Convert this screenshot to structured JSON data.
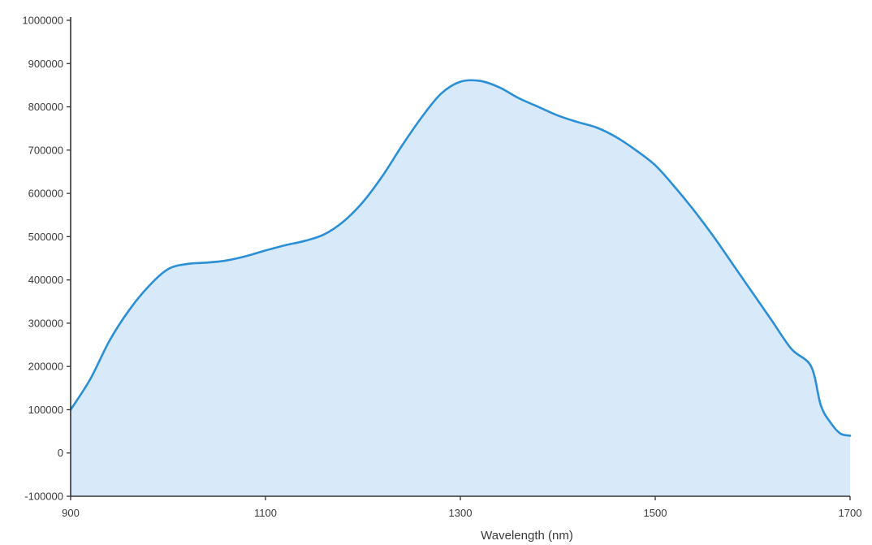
{
  "chart_data": {
    "type": "area",
    "title": "",
    "xlabel": "Wavelength (nm)",
    "ylabel": "",
    "xlim": [
      900,
      1700
    ],
    "ylim": [
      -100000,
      1000000
    ],
    "x_ticks": [
      900,
      1100,
      1300,
      1500,
      1700
    ],
    "y_ticks": [
      -100000,
      0,
      100000,
      200000,
      300000,
      400000,
      500000,
      600000,
      700000,
      800000,
      900000,
      1000000
    ],
    "grid": false,
    "colors": {
      "line": "#2b8fd6",
      "fill": "#d8e9f9",
      "axis": "#333333"
    },
    "series": [
      {
        "x": [
          900,
          920,
          940,
          960,
          980,
          1000,
          1020,
          1040,
          1060,
          1080,
          1100,
          1120,
          1140,
          1160,
          1180,
          1200,
          1220,
          1240,
          1260,
          1280,
          1300,
          1320,
          1340,
          1360,
          1380,
          1400,
          1420,
          1440,
          1460,
          1480,
          1500,
          1520,
          1540,
          1560,
          1580,
          1600,
          1620,
          1640,
          1660,
          1670,
          1680,
          1690,
          1700
        ],
        "y": [
          100000,
          170000,
          260000,
          330000,
          385000,
          425000,
          437000,
          440000,
          445000,
          455000,
          468000,
          480000,
          490000,
          505000,
          535000,
          580000,
          640000,
          710000,
          775000,
          830000,
          858000,
          860000,
          845000,
          820000,
          800000,
          780000,
          765000,
          752000,
          730000,
          700000,
          665000,
          615000,
          560000,
          500000,
          435000,
          370000,
          305000,
          240000,
          200000,
          110000,
          70000,
          45000,
          40000
        ]
      }
    ]
  }
}
